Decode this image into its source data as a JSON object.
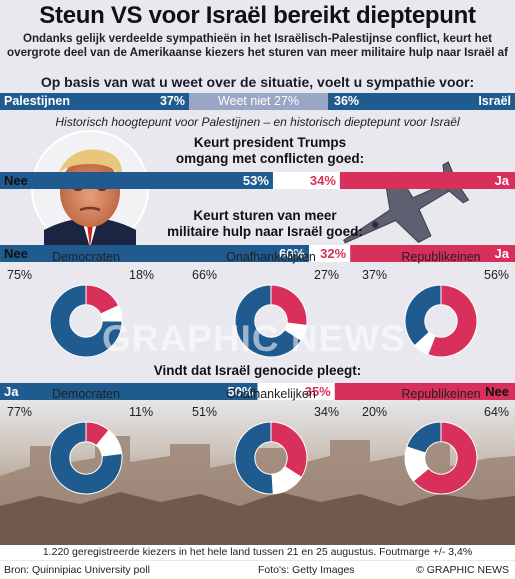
{
  "title": "Steun VS voor Israël bereikt dieptepunt",
  "subtitle": "Ondanks gelijk verdeelde sympathieën in het Israëlisch-Palestijnse conflict, keurt het overgrote deel van de Amerikaanse kiezers het sturen van meer militaire hulp naar Israël af",
  "sympathy": {
    "question": "Op basis van wat u weet over de situatie, voelt u sympathie voor:",
    "palestinians_label": "Palestijnen",
    "palestinians_pct": "37%",
    "unknown_label": "Weet niet 27%",
    "israel_pct": "36%",
    "israel_label": "Israël"
  },
  "note": "Historisch hoogtepunt voor Palestijnen – en historisch dieptepunt voor Israël",
  "trump": {
    "question_line1": "Keurt president Trumps",
    "question_line2": "omgang met conflicten goed:",
    "no_label": "Nee",
    "no_pct": "53%",
    "yes_pct": "34%",
    "yes_label": "Ja"
  },
  "aid": {
    "question_line1": "Keurt sturen van meer",
    "question_line2": "militaire hulp naar Israël goed:",
    "no_label": "Nee",
    "no_pct": "60%",
    "yes_pct": "32%",
    "yes_label": "Ja"
  },
  "aid_groups": [
    {
      "name": "Democraten",
      "no": "75%",
      "yes": "18%",
      "no_val": 75,
      "yes_val": 18
    },
    {
      "name": "Onafhankelijken",
      "no": "66%",
      "yes": "27%",
      "no_val": 66,
      "yes_val": 27
    },
    {
      "name": "Republikeinen",
      "no": "37%",
      "yes": "56%",
      "no_val": 37,
      "yes_val": 56
    }
  ],
  "genocide": {
    "question": "Vindt dat Israël genocide pleegt:",
    "yes_label": "Ja",
    "yes_pct": "50%",
    "no_pct": "35%",
    "no_label": "Nee"
  },
  "genocide_groups": [
    {
      "name": "Democraten",
      "yes": "77%",
      "no": "11%",
      "yes_val": 77,
      "no_val": 11
    },
    {
      "name": "Onafhankelijken",
      "yes": "51%",
      "no": "34%",
      "yes_val": 51,
      "no_val": 34
    },
    {
      "name": "Republikeinen",
      "yes": "20%",
      "no": "64%",
      "yes_val": 20,
      "no_val": 64
    }
  ],
  "footnote": "1.220 geregistreerde kiezers in het hele land tussen 21 en 25 augustus. Foutmarge +/- 3,4%",
  "source": "Bron: Quinnipiac University poll",
  "photos": "Foto's: Getty Images",
  "brand": "© GRAPHIC NEWS",
  "watermark": "GRAPHIC NEWS",
  "colors": {
    "blue": "#1f5b8f",
    "red": "#d8305a",
    "grey": "#9aa6c6",
    "white": "#ffffff"
  },
  "chart_data": [
    {
      "type": "bar",
      "categories": [
        "Palestijnen",
        "Weet niet",
        "Israël"
      ],
      "values": [
        37,
        27,
        36
      ]
    },
    {
      "type": "bar",
      "categories": [
        "Nee",
        "Ja"
      ],
      "values": [
        53,
        34
      ]
    },
    {
      "type": "bar",
      "categories": [
        "Nee",
        "Ja"
      ],
      "values": [
        60,
        32
      ]
    },
    {
      "type": "pie",
      "categories": [
        "Democraten",
        "Onafhankelijken",
        "Republikeinen"
      ],
      "series": [
        {
          "values": [
            75,
            66,
            37
          ]
        },
        {
          "values": [
            18,
            27,
            56
          ]
        }
      ]
    },
    {
      "type": "bar",
      "categories": [
        "Ja",
        "Nee"
      ],
      "values": [
        50,
        35
      ]
    },
    {
      "type": "pie",
      "categories": [
        "Democraten",
        "Onafhankelijken",
        "Republikeinen"
      ],
      "series": [
        {
          "values": [
            77,
            51,
            20
          ]
        },
        {
          "values": [
            11,
            34,
            64
          ]
        }
      ]
    }
  ]
}
